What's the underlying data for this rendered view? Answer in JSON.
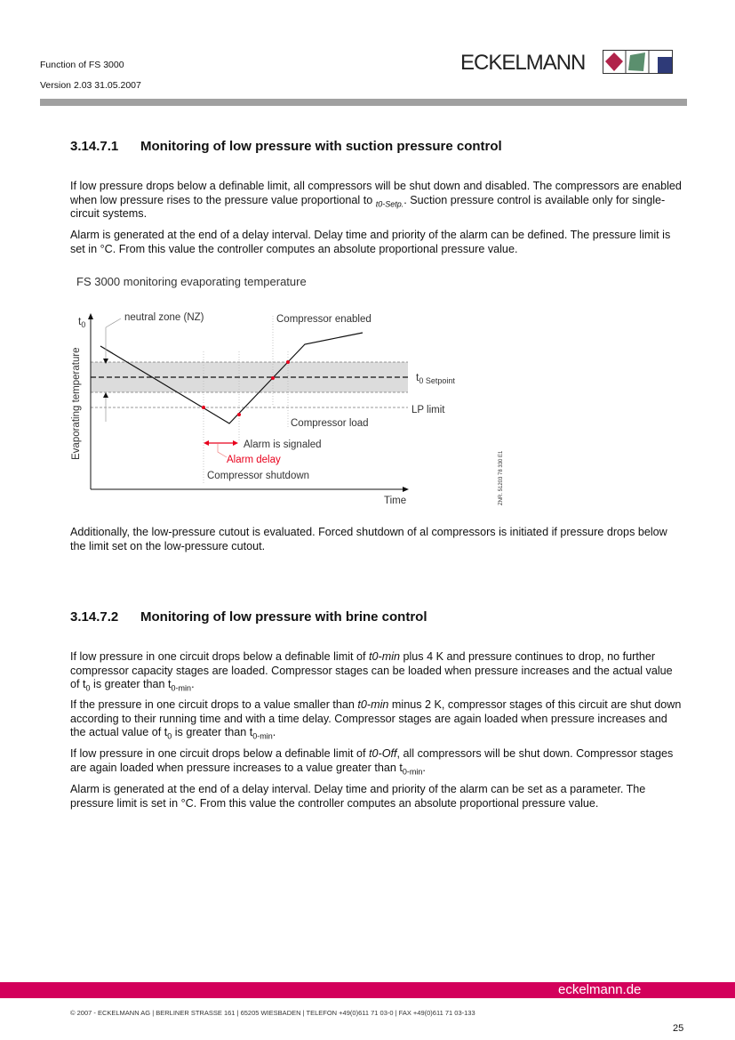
{
  "header": {
    "doc_title": "Function of FS 3000",
    "version": "Version 2.03   31.05.2007",
    "logo_text": "ECKELMANN",
    "colors": {
      "red": "#b0234a",
      "green": "#5b8f6e",
      "blue": "#2e3a78",
      "bar": "#a0a0a0"
    }
  },
  "section1": {
    "number": "3.14.7.1",
    "title": "Monitoring of low pressure with suction pressure control",
    "p1a": "If low pressure drops below a definable limit, all compressors will be shut down and disabled. The compressors are enabled when low pressure rises to the pressure value proportional to ",
    "p1sub": "t0-Setp.",
    "p1b": ". Suction pressure control is available only for single-circuit systems.",
    "p2": "Alarm is generated at the end of a delay interval. Delay time and priority of the alarm can be defined. The pressure limit is set in °C. From this value the controller computes an absolute proportional pressure value.",
    "p3": "Additionally, the low-pressure cutout is evaluated. Forced shutdown of al compressors is initiated if pressure drops below the limit set on the low-pressure cutout."
  },
  "diagram": {
    "title": "FS 3000 monitoring evaporating temperature",
    "y_axis": "Evaporating temperature",
    "y_symbol": "t",
    "y_sub": "0",
    "x_axis": "Time",
    "neutral_zone": "neutral zone (NZ)",
    "compressor_enabled": "Compressor enabled",
    "setpoint_t": "t",
    "setpoint_sub": "0 Setpoint",
    "lp_limit": "LP limit",
    "compressor_load": "Compressor load",
    "alarm_signaled": "Alarm is signaled",
    "alarm_delay": "Alarm delay",
    "compressor_shutdown": "Compressor shutdown",
    "ref": "ZNR. 51203 78 330 E1",
    "colors": {
      "alarm": "#e8001c",
      "band": "#dcdcdc"
    }
  },
  "section2": {
    "number": "3.14.7.2",
    "title": "Monitoring of low pressure with brine control",
    "p1a": "If low pressure in one circuit drops below a definable limit of ",
    "p1i": "t0-min",
    "p1b": " plus 4 K and pressure continues to drop, no further compressor capacity stages are loaded. Compressor stages can be loaded when pressure increases and the actual value of t",
    "p1s1": "0",
    "p1c": " is greater than t",
    "p1s2": "0-min",
    "p1d": ".",
    "p2a": "If the pressure in one circuit drops to a value smaller than ",
    "p2i": "t0-min",
    "p2b": " minus 2 K, compressor stages of this circuit are shut down according to their running time and with a time delay. Compressor stages are again loaded when pressure increases and the actual value of t",
    "p2s1": "0",
    "p2c": " is greater than t",
    "p2s2": "0-min",
    "p2d": ".",
    "p3a": "If low pressure in one circuit drops below a definable limit of ",
    "p3i": "t0-Off",
    "p3b": ", all compressors will be shut down. Compressor stages are again loaded when pressure increases to a value greater than t",
    "p3s": "0-min",
    "p3c": ".",
    "p4": "Alarm is generated at the end of a delay interval. Delay time and priority of the alarm can be set as a parameter. The pressure limit is set in °C. From this value the controller computes an absolute proportional pressure value."
  },
  "footer": {
    "site": "eckelmann.de",
    "address": "© 2007 - ECKELMANN AG | BERLINER STRASSE 161 | 65205 WIESBADEN | TELEFON +49(0)611 71 03-0 | FAX +49(0)611 71 03-133",
    "page": "25",
    "color": "#d3005b"
  }
}
